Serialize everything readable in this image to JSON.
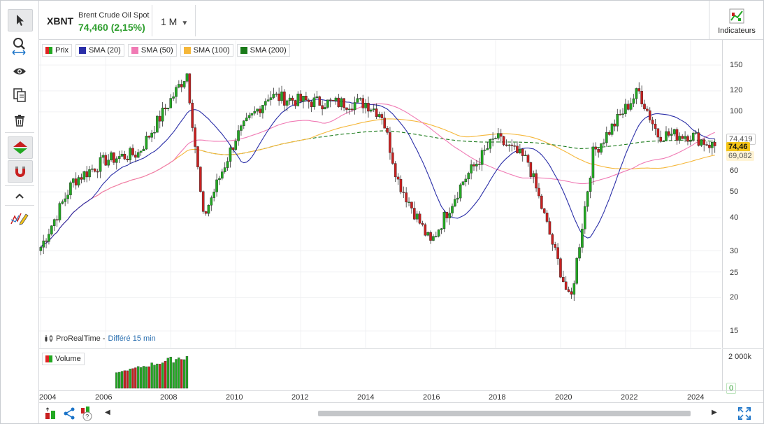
{
  "header": {
    "ticker": "XBNT",
    "instrument_name": "Brent Crude Oil Spot",
    "price_change": "74,460 (2,15%)",
    "period": "1 M",
    "indicators_label": "Indicateurs"
  },
  "legend": {
    "price": "Prix",
    "sma20": "SMA (20)",
    "sma50": "SMA (50)",
    "sma100": "SMA (100)",
    "sma200": "SMA (200)"
  },
  "colors": {
    "up": "#22a822",
    "down": "#c82020",
    "sma20": "#2b2fa8",
    "sma50": "#f07ab4",
    "sma100": "#f5b73a",
    "sma200": "#1a7a1a",
    "price_tag": "#f5c518"
  },
  "source": {
    "provider": "ProRealTime",
    "delay": "Différé 15 min"
  },
  "volume": {
    "label": "Volume",
    "axis_max": "2 000k",
    "last": "0"
  },
  "price_axis": {
    "ticks": [
      "150",
      "120",
      "100",
      "60",
      "50",
      "40",
      "30",
      "25",
      "20",
      "15"
    ],
    "last_price": "74,46",
    "sma100_tag": "69,082",
    "sma200_tag": "74,419"
  },
  "time_axis": {
    "ticks": [
      "2004",
      "2006",
      "2008",
      "2010",
      "2012",
      "2014",
      "2016",
      "2018",
      "2020",
      "2022",
      "2024"
    ]
  },
  "chart_data": {
    "type": "line",
    "x": [
      2004,
      2005,
      2006,
      2007,
      2008.5,
      2009,
      2010,
      2011,
      2012,
      2013,
      2014,
      2014.5,
      2015,
      2016,
      2017,
      2018,
      2019,
      2020.3,
      2021,
      2022.4,
      2023,
      2024,
      2024.7
    ],
    "series": [
      {
        "name": "Prix",
        "values": [
          31,
          55,
          66,
          70,
          140,
          40,
          80,
          115,
          110,
          108,
          108,
          98,
          55,
          32,
          55,
          80,
          65,
          19,
          70,
          120,
          82,
          82,
          74.46
        ]
      }
    ],
    "ylim": [
      14,
      170
    ],
    "scale": "log"
  }
}
